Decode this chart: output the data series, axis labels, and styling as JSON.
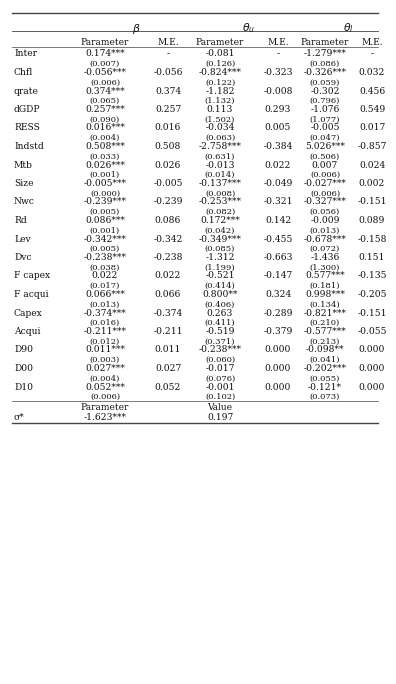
{
  "sub_headers": [
    "Parameter",
    "M.E.",
    "Parameter",
    "M.E.",
    "Parameter",
    "M.E."
  ],
  "rows": [
    {
      "label": "Inter",
      "vals": [
        "0.174***",
        "-",
        "-0.081",
        "-",
        "-1.279***",
        "-"
      ],
      "ses": [
        "(0.007)",
        "",
        "(0.126)",
        "",
        "(0.086)",
        ""
      ]
    },
    {
      "label": "Chfl",
      "vals": [
        "-0.056***",
        "-0.056",
        "-0.824***",
        "-0.323",
        "-0.326***",
        "0.032"
      ],
      "ses": [
        "(0.006)",
        "",
        "(0.122)",
        "",
        "(0.059)",
        ""
      ]
    },
    {
      "label": "qrate",
      "vals": [
        "0.374***",
        "0.374",
        "-1.182",
        "-0.008",
        "-0.302",
        "0.456"
      ],
      "ses": [
        "(0.065)",
        "",
        "(1.132)",
        "",
        "(0.796)",
        ""
      ]
    },
    {
      "label": "dGDP",
      "vals": [
        "0.257***",
        "0.257",
        "0.113",
        "0.293",
        "-1.076",
        "0.549"
      ],
      "ses": [
        "(0.090)",
        "",
        "(1.502)",
        "",
        "(1.077)",
        ""
      ]
    },
    {
      "label": "RESS",
      "vals": [
        "0.016***",
        "0.016",
        "-0.034",
        "0.005",
        "-0.005",
        "0.017"
      ],
      "ses": [
        "(0.004)",
        "",
        "(0.063)",
        "",
        "(0.047)",
        ""
      ]
    },
    {
      "label": "Indstd",
      "vals": [
        "0.508***",
        "0.508",
        "-2.758***",
        "-0.384",
        "5.026***",
        "-0.857"
      ],
      "ses": [
        "(0.033)",
        "",
        "(0.631)",
        "",
        "(0.506)",
        ""
      ]
    },
    {
      "label": "Mtb",
      "vals": [
        "0.026***",
        "0.026",
        "-0.013",
        "0.022",
        "0.007",
        "0.024"
      ],
      "ses": [
        "(0.001)",
        "",
        "(0.014)",
        "",
        "(0.006)",
        ""
      ]
    },
    {
      "label": "Size",
      "vals": [
        "-0.005***",
        "-0.005",
        "-0.137***",
        "-0.049",
        "-0.027***",
        "0.002"
      ],
      "ses": [
        "(0.000)",
        "",
        "(0.008)",
        "",
        "(0.006)",
        ""
      ]
    },
    {
      "label": "Nwc",
      "vals": [
        "-0.239***",
        "-0.239",
        "-0.253***",
        "-0.321",
        "-0.327***",
        "-0.151"
      ],
      "ses": [
        "(0.005)",
        "",
        "(0.082)",
        "",
        "(0.056)",
        ""
      ]
    },
    {
      "label": "Rd",
      "vals": [
        "0.086***",
        "0.086",
        "0.172***",
        "0.142",
        "-0.009",
        "0.089"
      ],
      "ses": [
        "(0.001)",
        "",
        "(0.042)",
        "",
        "(0.013)",
        ""
      ]
    },
    {
      "label": "Lev",
      "vals": [
        "-0.342***",
        "-0.342",
        "-0.349***",
        "-0.455",
        "-0.678***",
        "-0.158"
      ],
      "ses": [
        "(0.005)",
        "",
        "(0.085)",
        "",
        "(0.072)",
        ""
      ]
    },
    {
      "label": "Dvc",
      "vals": [
        "-0.238***",
        "-0.238",
        "-1.312",
        "-0.663",
        "-1.436",
        "0.151"
      ],
      "ses": [
        "(0.038)",
        "",
        "(1.199)",
        "",
        "(1.300)",
        ""
      ]
    },
    {
      "label": "F capex",
      "vals": [
        "0.022",
        "0.022",
        "-0.521",
        "-0.147",
        "0.577***",
        "-0.135"
      ],
      "ses": [
        "(0.017)",
        "",
        "(0.414)",
        "",
        "(0.181)",
        ""
      ]
    },
    {
      "label": "F acqui",
      "vals": [
        "0.066***",
        "0.066",
        "0.800**",
        "0.324",
        "0.998***",
        "-0.205"
      ],
      "ses": [
        "(0.013)",
        "",
        "(0.406)",
        "",
        "(0.134)",
        ""
      ]
    },
    {
      "label": "Capex",
      "vals": [
        "-0.374***",
        "-0.374",
        "0.263",
        "-0.289",
        "-0.821***",
        "-0.151"
      ],
      "ses": [
        "(0.016)",
        "",
        "(0.411)",
        "",
        "(0.210)",
        ""
      ]
    },
    {
      "label": "Acqui",
      "vals": [
        "-0.211***",
        "-0.211",
        "-0.519",
        "-0.379",
        "-0.577***",
        "-0.055"
      ],
      "ses": [
        "(0.012)",
        "",
        "(0.371)",
        "",
        "(0.213)",
        ""
      ]
    },
    {
      "label": "D90",
      "vals": [
        "0.011***",
        "0.011",
        "-0.238***",
        "0.000",
        "-0.098**",
        "0.000"
      ],
      "ses": [
        "(0.003)",
        "",
        "(0.060)",
        "",
        "(0.041)",
        ""
      ]
    },
    {
      "label": "D00",
      "vals": [
        "0.027***",
        "0.027",
        "-0.017",
        "0.000",
        "-0.202***",
        "0.000"
      ],
      "ses": [
        "(0.004)",
        "",
        "(0.076)",
        "",
        "(0.055)",
        ""
      ]
    },
    {
      "label": "D10",
      "vals": [
        "0.052***",
        "0.052",
        "-0.001",
        "0.000",
        "-0.121*",
        "0.000"
      ],
      "ses": [
        "(0.006)",
        "",
        "(0.102)",
        "",
        "(0.073)",
        ""
      ]
    }
  ],
  "footer_param_label": "Parameter",
  "footer_value_label": "Value",
  "footer_label": "σ*",
  "footer_param": "-1.623***",
  "footer_value": "0.197",
  "bg_color": "#ffffff",
  "text_color": "#111111",
  "line_color": "#444444",
  "font_size": 6.8
}
